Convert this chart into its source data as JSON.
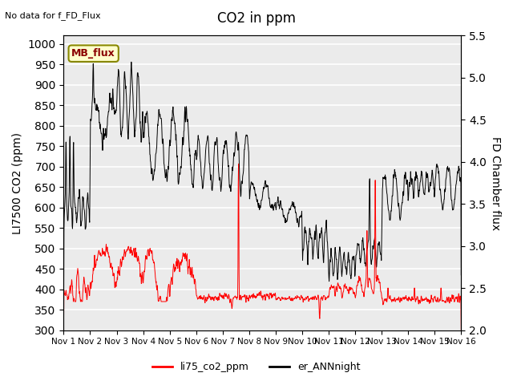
{
  "title": "CO2 in ppm",
  "note": "No data for f_FD_Flux",
  "ylabel_left": "LI7500 CO2 (ppm)",
  "ylabel_right": "FD Chamber flux",
  "ylim_left": [
    300,
    1020
  ],
  "ylim_right": [
    2.0,
    5.5
  ],
  "yticks_left": [
    300,
    350,
    400,
    450,
    500,
    550,
    600,
    650,
    700,
    750,
    800,
    850,
    900,
    950,
    1000
  ],
  "yticks_right": [
    2.0,
    2.5,
    3.0,
    3.5,
    4.0,
    4.5,
    5.0,
    5.5
  ],
  "xtick_labels": [
    "Nov 1",
    "Nov 2",
    "Nov 3",
    "Nov 4",
    "Nov 5",
    "Nov 6",
    "Nov 7",
    "Nov 8",
    "Nov 9",
    "Nov 10",
    "Nov 11",
    "Nov 12",
    "Nov 13",
    "Nov 14",
    "Nov 15",
    "Nov 16"
  ],
  "legend_box_text": "MB_flux",
  "legend_box_color": "#ffffcc",
  "legend_box_edgecolor": "#888800",
  "line_red_color": "#ff0000",
  "line_black_color": "#000000",
  "background_color": "#ebebeb",
  "grid_color": "#ffffff",
  "legend_label_red": "li75_co2_ppm",
  "legend_label_black": "er_ANNnight",
  "font_size": 10,
  "title_font_size": 12
}
